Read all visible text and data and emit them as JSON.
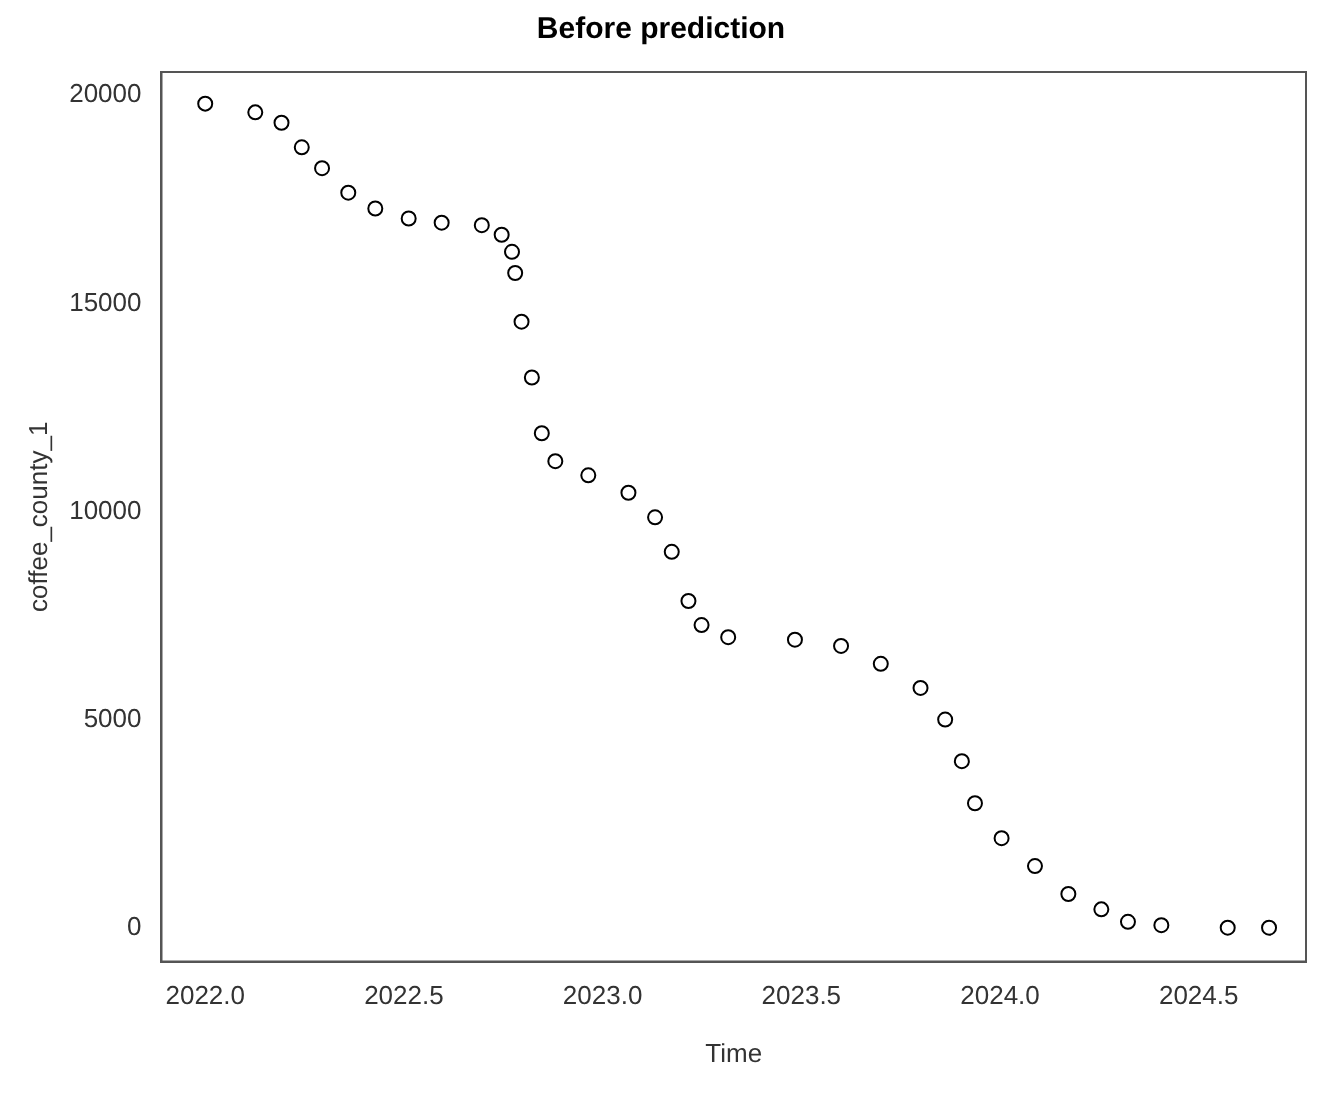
{
  "chart_data": {
    "type": "scatter",
    "title": "Before prediction",
    "xlabel": "Time",
    "ylabel": "coffee_county_1",
    "x": [
      2022.0,
      2022.126,
      2022.192,
      2022.243,
      2022.294,
      2022.36,
      2022.428,
      2022.512,
      2022.595,
      2022.696,
      2022.746,
      2022.772,
      2022.78,
      2022.796,
      2022.822,
      2022.847,
      2022.881,
      2022.964,
      2023.065,
      2023.132,
      2023.174,
      2023.216,
      2023.249,
      2023.316,
      2023.484,
      2023.6,
      2023.7,
      2023.8,
      2023.862,
      2023.904,
      2023.937,
      2024.004,
      2024.088,
      2024.172,
      2024.255,
      2024.322,
      2024.406,
      2024.573,
      2024.677
    ],
    "series": [
      {
        "color": "#000000",
        "values": [
          19800,
          19590,
          19340,
          18750,
          18250,
          17660,
          17280,
          17040,
          16940,
          16880,
          16650,
          16240,
          15730,
          14560,
          13220,
          11880,
          11210,
          10870,
          10450,
          9860,
          9030,
          7850,
          7270,
          6980,
          6920,
          6770,
          6340,
          5760,
          5000,
          4000,
          2990,
          2150,
          1480,
          810,
          440,
          140,
          60,
          0,
          0
        ]
      }
    ],
    "xlim": [
      2021.89,
      2024.77
    ],
    "ylim": [
      -815,
      20560
    ],
    "xticks": [
      {
        "value": 2022,
        "label": "2022.0"
      },
      {
        "value": 2022.5,
        "label": "2022.5"
      },
      {
        "value": 2023,
        "label": "2023.0"
      },
      {
        "value": 2023.5,
        "label": "2023.5"
      },
      {
        "value": 2024,
        "label": "2024.0"
      },
      {
        "value": 2024.5,
        "label": "2024.5"
      }
    ],
    "yticks": [
      0,
      5000,
      10000,
      15000,
      20000
    ],
    "grid": false,
    "legend": false,
    "marker": "circle"
  }
}
